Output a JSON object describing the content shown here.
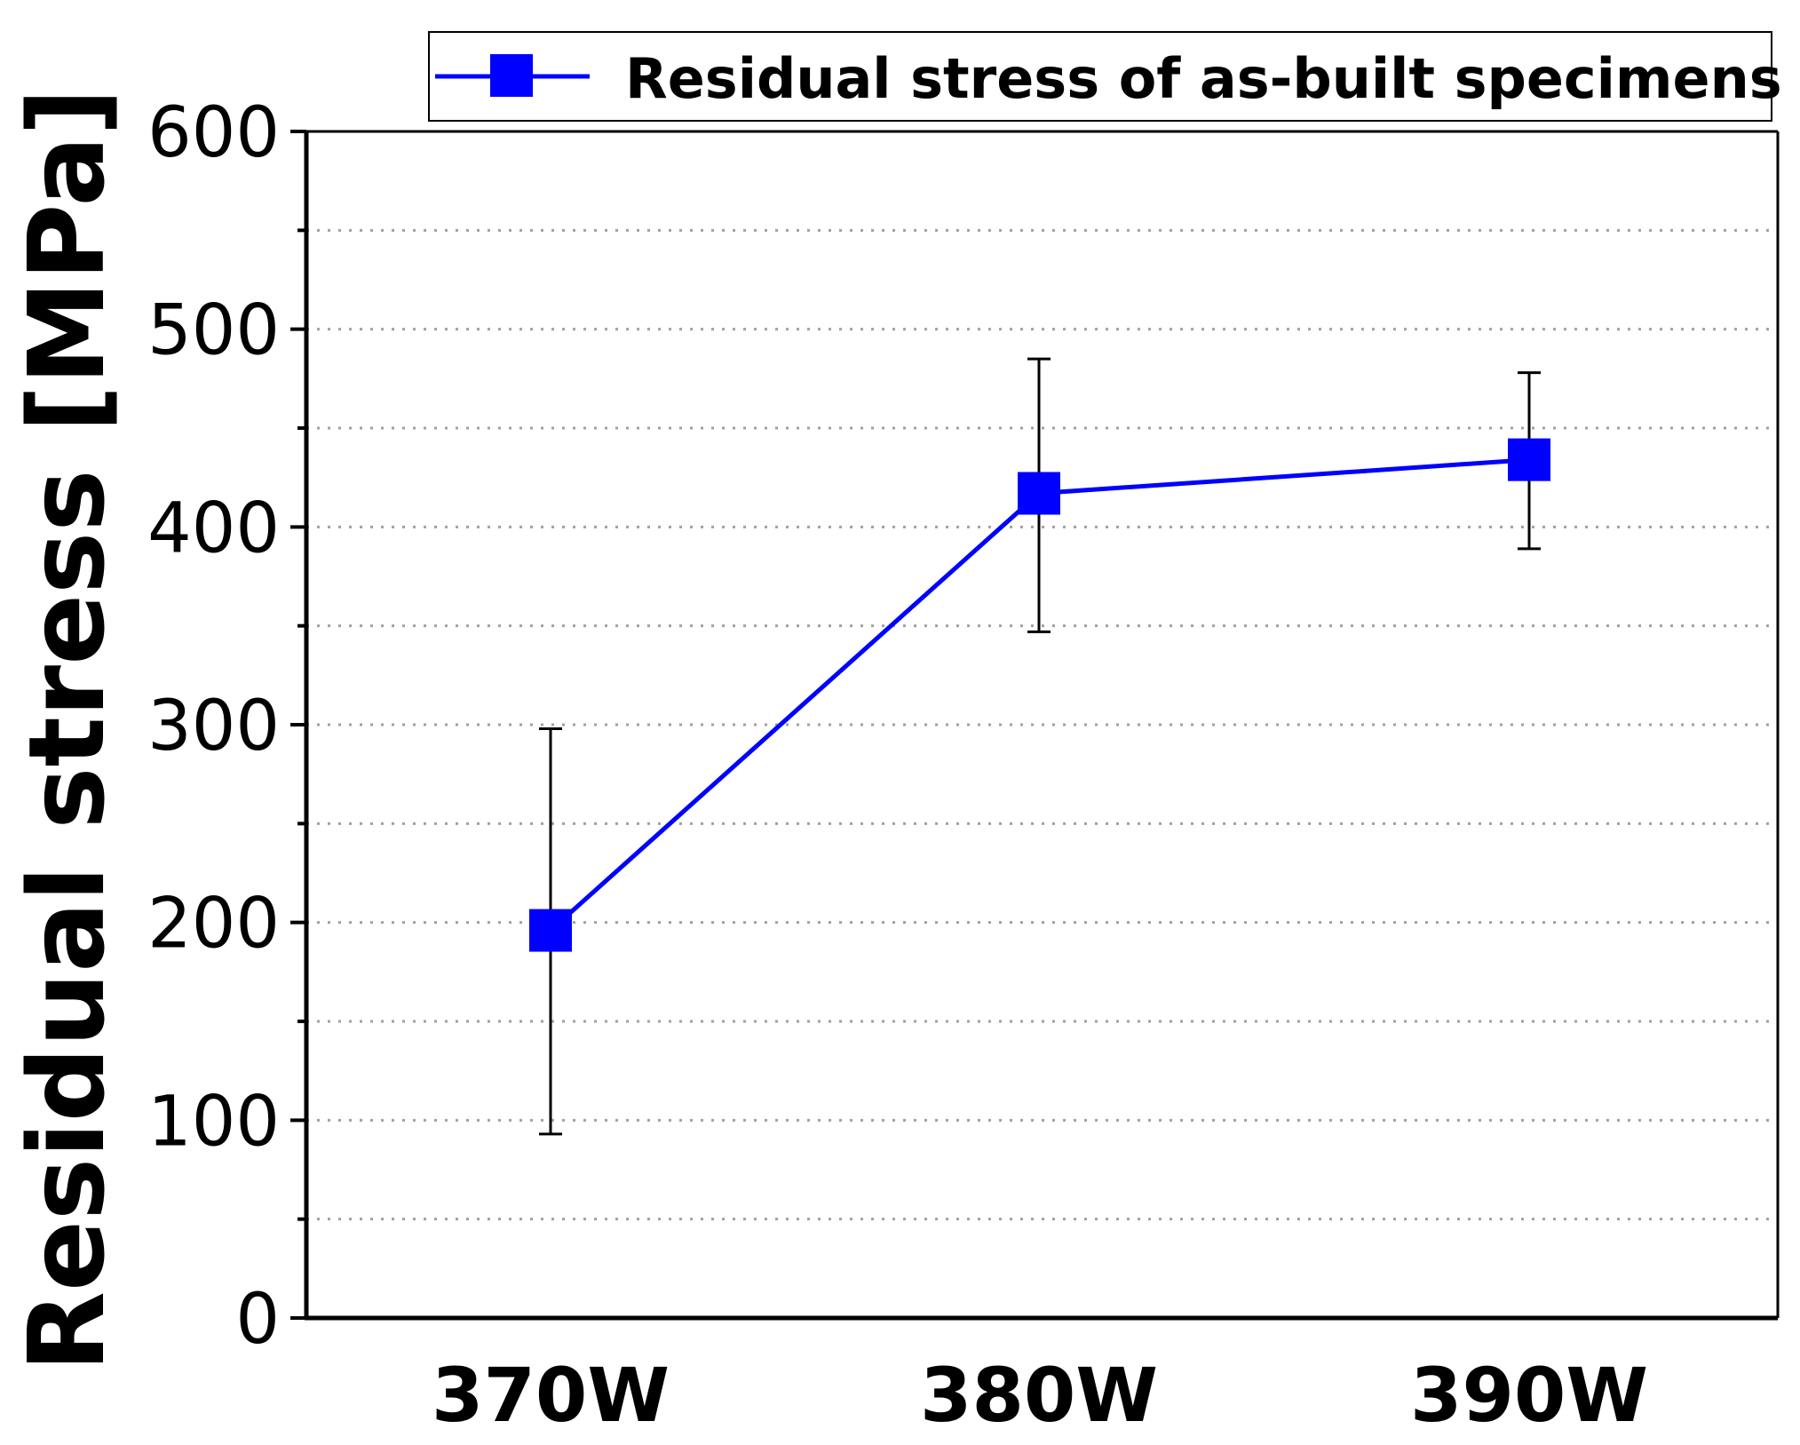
{
  "chart_data": {
    "type": "line",
    "title": "",
    "xlabel": "",
    "ylabel": "Residual stress [MPa]",
    "categories": [
      "370W",
      "380W",
      "390W"
    ],
    "series": [
      {
        "name": "Residual stress of as-built specimens",
        "values": [
          196,
          417,
          434
        ],
        "error_low": [
          93,
          347,
          389
        ],
        "error_high": [
          298,
          485,
          478
        ],
        "color": "#0000ff",
        "marker": "square"
      }
    ],
    "ylim": [
      0,
      600
    ],
    "yticks_major": [
      0,
      100,
      200,
      300,
      400,
      500,
      600
    ],
    "yticks_minor": [
      50,
      150,
      250,
      350,
      450,
      550
    ],
    "grid": true,
    "legend_position": "top-right (outside plot)"
  },
  "colors": {
    "series_line": "#0000ff",
    "axis": "#000000",
    "grid": "#a0a0a0",
    "error_bar": "#000000"
  }
}
